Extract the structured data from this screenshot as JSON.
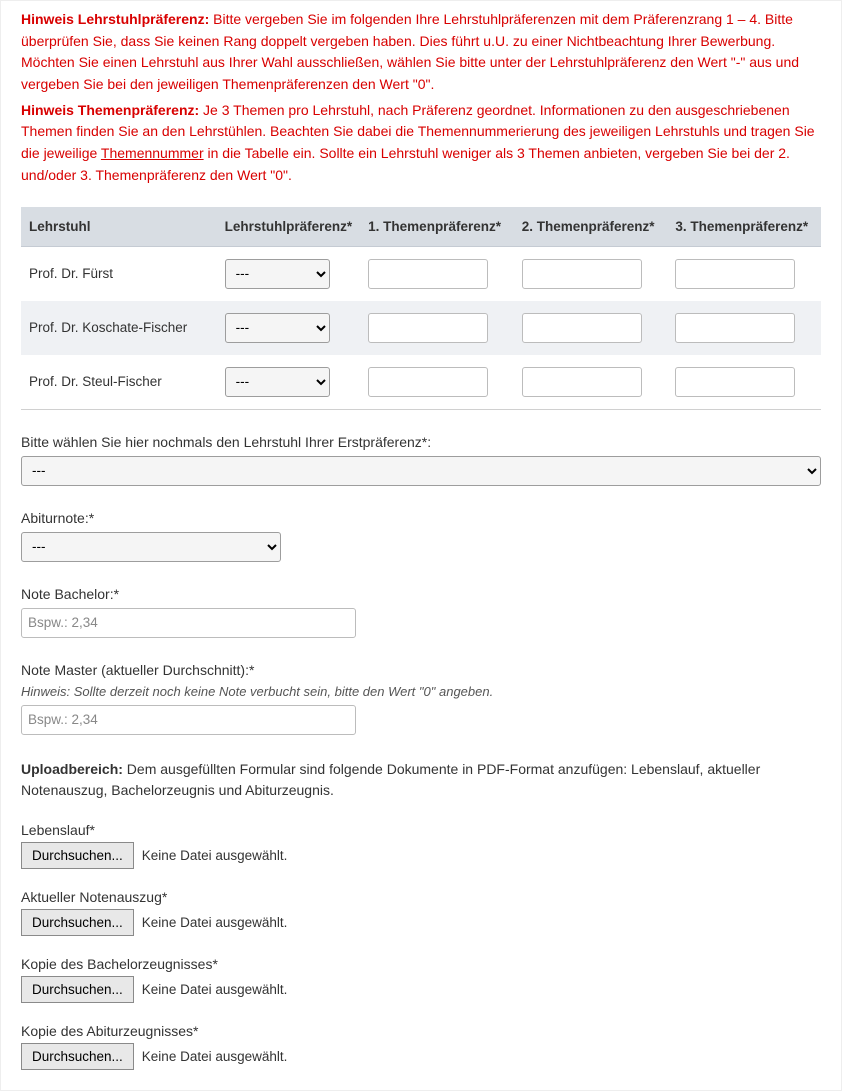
{
  "hints": {
    "lehrstuhl_label": "Hinweis Lehrstuhlpräferenz:",
    "lehrstuhl_text": "Bitte vergeben Sie im folgenden Ihre Lehrstuhlpräferenzen mit dem Präferenzrang 1 – 4. Bitte überprüfen Sie, dass Sie keinen Rang doppelt vergeben haben. Dies führt u.U. zu einer Nichtbeachtung Ihrer Bewerbung. Möchten Sie einen Lehrstuhl aus Ihrer Wahl ausschließen, wählen Sie bitte unter der Lehrstuhlpräferenz den Wert \"-\" aus und vergeben Sie bei den jeweiligen Themenpräferenzen den Wert \"0\".",
    "themen_label": "Hinweis Themenpräferenz:",
    "themen_text_a": "Je 3 Themen pro Lehrstuhl, nach Präferenz geordnet. Informationen zu den ausgeschriebenen Themen finden Sie an den Lehrstühlen. Beachten Sie dabei die Themennummerierung des jeweiligen Lehrstuhls und tragen Sie die jeweilige ",
    "themen_underline": "Themennummer",
    "themen_text_b": " in die Tabelle ein. Sollte ein Lehrstuhl weniger als 3 Themen anbieten, vergeben Sie bei der 2. und/oder 3. Themenpräferenz den Wert \"0\"."
  },
  "table": {
    "headers": {
      "lehrstuhl": "Lehrstuhl",
      "lehrstuhlpref": "Lehrstuhlpräferenz*",
      "thema1": "1. Themenpräferenz*",
      "thema2": "2. Themenpräferenz*",
      "thema3": "3. Themenpräferenz*"
    },
    "default_option": "---",
    "rows": [
      {
        "name": "Prof. Dr. Fürst"
      },
      {
        "name": "Prof. Dr. Koschate-Fischer"
      },
      {
        "name": "Prof. Dr. Steul-Fischer"
      }
    ]
  },
  "fields": {
    "erstpref_label": "Bitte wählen Sie hier nochmals den Lehrstuhl Ihrer Erstpräferenz*:",
    "erstpref_value": "---",
    "abiturnote_label": "Abiturnote:*",
    "abiturnote_value": "---",
    "note_bachelor_label": "Note Bachelor:*",
    "note_bachelor_placeholder": "Bspw.: 2,34",
    "note_master_label": "Note Master (aktueller Durchschnitt):*",
    "note_master_hint": "Hinweis: Sollte derzeit noch keine Note verbucht sein, bitte den Wert \"0\" angeben.",
    "note_master_placeholder": "Bspw.: 2,34"
  },
  "upload": {
    "heading_bold": "Uploadbereich:",
    "heading_text": " Dem ausgefüllten Formular sind folgende Dokumente in PDF-Format anzufügen: Lebenslauf, aktueller Notenauszug, Bachelorzeugnis und Abiturzeugnis.",
    "browse_label": "Durchsuchen...",
    "no_file_label": "Keine Datei ausgewählt.",
    "items": [
      {
        "label": "Lebenslauf*"
      },
      {
        "label": "Aktueller Notenauszug*"
      },
      {
        "label": "Kopie des Bachelorzeugnisses*"
      },
      {
        "label": "Kopie des Abiturzeugnisses*"
      }
    ]
  }
}
